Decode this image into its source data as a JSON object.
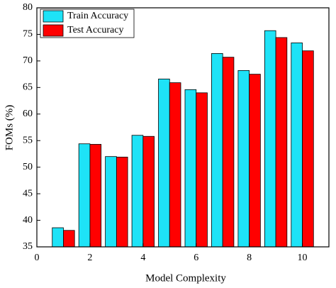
{
  "chart_data": {
    "type": "bar",
    "x_label": "Model Complexity",
    "y_label": "FOMs (%)",
    "x": [
      1,
      2,
      3,
      4,
      5,
      6,
      7,
      8,
      9,
      10
    ],
    "series": [
      {
        "name": "Train Accuracy",
        "color": "#1ee3f7",
        "values": [
          38.6,
          54.4,
          52.0,
          56.0,
          66.6,
          64.6,
          71.4,
          68.2,
          75.7,
          73.4
        ]
      },
      {
        "name": "Test Accuracy",
        "color": "#ff0000",
        "values": [
          38.1,
          54.3,
          51.9,
          55.8,
          65.9,
          64.0,
          70.7,
          67.5,
          74.4,
          71.9
        ]
      }
    ],
    "xlim": [
      0,
      11
    ],
    "xticks": [
      0,
      2,
      4,
      6,
      8,
      10
    ],
    "ylim": [
      35,
      80
    ],
    "yticks": [
      35,
      40,
      45,
      50,
      55,
      60,
      65,
      70,
      75,
      80
    ],
    "legend": "upper-left"
  }
}
